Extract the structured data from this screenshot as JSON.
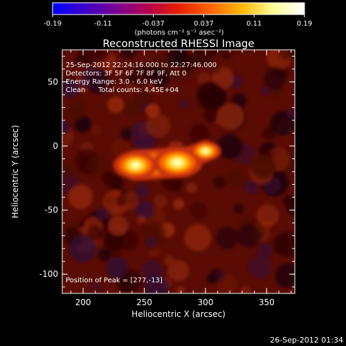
{
  "colors": {
    "background": "#000000",
    "text": "#ffffff",
    "colormap": [
      "#0000ff",
      "#3c00c8",
      "#780096",
      "#b40050",
      "#e61e00",
      "#ff6400",
      "#ffb400",
      "#ffff96",
      "#ffffff"
    ]
  },
  "colorbar": {
    "ticks": [
      "-0.19",
      "-0.11",
      "-0.037",
      "0.037",
      "0.11",
      "0.19"
    ],
    "units": "(photons cm⁻² s⁻¹ asec⁻²)"
  },
  "chart_data": {
    "type": "heatmap",
    "title": "Reconstructed RHESSI Image",
    "xlabel": "Heliocentric X (arcsec)",
    "ylabel": "Heliocentric Y (arcsec)",
    "xlim": [
      183,
      373
    ],
    "ylim": [
      -115,
      75
    ],
    "xticks": [
      200,
      250,
      300,
      350
    ],
    "yticks": [
      50,
      0,
      -50,
      -100
    ],
    "value_range": [
      -0.19,
      0.19
    ],
    "sources": [
      {
        "x": 243,
        "y": -15,
        "peak": 0.17
      },
      {
        "x": 277,
        "y": -13,
        "peak": 0.19
      },
      {
        "x": 300,
        "y": -4,
        "peak": 0.12
      }
    ],
    "annotations": {
      "time_range": "25-Sep-2012 22:24:16.000 to 22:27:46.000",
      "detectors": "Detectors: 3F 5F 6F 7F 8F 9F, Att 0",
      "energy": "Energy Range: 3.0 - 6.0 keV",
      "method": "Clean",
      "counts": "Total counts: 4.45E+04",
      "peak_position": "Position of Peak = [277,-13]"
    }
  },
  "footer": {
    "timestamp": "26-Sep-2012 01:34"
  }
}
